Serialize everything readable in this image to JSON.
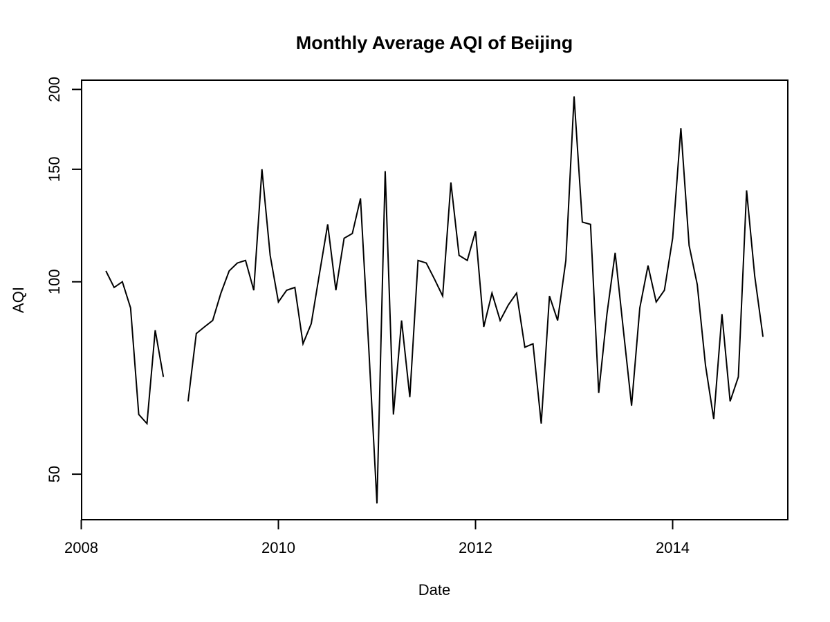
{
  "chart_data": {
    "type": "line",
    "title": "Monthly Average AQI of Beijing",
    "xlabel": "Date",
    "ylabel": "AQI",
    "y_scale": "log",
    "x_ticks": [
      2008,
      2010,
      2012,
      2014
    ],
    "y_ticks": [
      50,
      100,
      150,
      200
    ],
    "xlim": [
      2007.97,
      2015.19
    ],
    "ylim": [
      42.4,
      206.7
    ],
    "grid": false,
    "legend": "none",
    "line_color": "#000000",
    "background_color": "#ffffff",
    "points": [
      {
        "date": "2008-04",
        "aqi": 104
      },
      {
        "date": "2008-05",
        "aqi": 98
      },
      {
        "date": "2008-06",
        "aqi": 100
      },
      {
        "date": "2008-07",
        "aqi": 91
      },
      {
        "date": "2008-08",
        "aqi": 62
      },
      {
        "date": "2008-09",
        "aqi": 60
      },
      {
        "date": "2008-10",
        "aqi": 84
      },
      {
        "date": "2008-11",
        "aqi": 71
      },
      {
        "date": "2008-12",
        "aqi": null
      },
      {
        "date": "2009-01",
        "aqi": null
      },
      {
        "date": "2009-02",
        "aqi": 65
      },
      {
        "date": "2009-03",
        "aqi": 83
      },
      {
        "date": "2009-04",
        "aqi": 85
      },
      {
        "date": "2009-05",
        "aqi": 87
      },
      {
        "date": "2009-06",
        "aqi": 96
      },
      {
        "date": "2009-07",
        "aqi": 104
      },
      {
        "date": "2009-08",
        "aqi": 107
      },
      {
        "date": "2009-09",
        "aqi": 108
      },
      {
        "date": "2009-10",
        "aqi": 97
      },
      {
        "date": "2009-11",
        "aqi": 150
      },
      {
        "date": "2009-12",
        "aqi": 110
      },
      {
        "date": "2010-01",
        "aqi": 93
      },
      {
        "date": "2010-02",
        "aqi": 97
      },
      {
        "date": "2010-03",
        "aqi": 98
      },
      {
        "date": "2010-04",
        "aqi": 80
      },
      {
        "date": "2010-05",
        "aqi": 86
      },
      {
        "date": "2010-06",
        "aqi": 103
      },
      {
        "date": "2010-07",
        "aqi": 123
      },
      {
        "date": "2010-08",
        "aqi": 97
      },
      {
        "date": "2010-09",
        "aqi": 117
      },
      {
        "date": "2010-10",
        "aqi": 119
      },
      {
        "date": "2010-11",
        "aqi": 135
      },
      {
        "date": "2010-12",
        "aqi": 79
      },
      {
        "date": "2011-01",
        "aqi": 45
      },
      {
        "date": "2011-02",
        "aqi": 149
      },
      {
        "date": "2011-03",
        "aqi": 62
      },
      {
        "date": "2011-04",
        "aqi": 87
      },
      {
        "date": "2011-05",
        "aqi": 66
      },
      {
        "date": "2011-06",
        "aqi": 108
      },
      {
        "date": "2011-07",
        "aqi": 107
      },
      {
        "date": "2011-08",
        "aqi": 101
      },
      {
        "date": "2011-09",
        "aqi": 95
      },
      {
        "date": "2011-10",
        "aqi": 143
      },
      {
        "date": "2011-11",
        "aqi": 110
      },
      {
        "date": "2011-12",
        "aqi": 108
      },
      {
        "date": "2012-01",
        "aqi": 120
      },
      {
        "date": "2012-02",
        "aqi": 85
      },
      {
        "date": "2012-03",
        "aqi": 96
      },
      {
        "date": "2012-04",
        "aqi": 87
      },
      {
        "date": "2012-05",
        "aqi": 92
      },
      {
        "date": "2012-06",
        "aqi": 96
      },
      {
        "date": "2012-07",
        "aqi": 79
      },
      {
        "date": "2012-08",
        "aqi": 80
      },
      {
        "date": "2012-09",
        "aqi": 60
      },
      {
        "date": "2012-10",
        "aqi": 95
      },
      {
        "date": "2012-11",
        "aqi": 87
      },
      {
        "date": "2012-12",
        "aqi": 108
      },
      {
        "date": "2013-01",
        "aqi": 195
      },
      {
        "date": "2013-02",
        "aqi": 124
      },
      {
        "date": "2013-03",
        "aqi": 123
      },
      {
        "date": "2013-04",
        "aqi": 67
      },
      {
        "date": "2013-05",
        "aqi": 89
      },
      {
        "date": "2013-06",
        "aqi": 111
      },
      {
        "date": "2013-07",
        "aqi": 84
      },
      {
        "date": "2013-08",
        "aqi": 64
      },
      {
        "date": "2013-09",
        "aqi": 91
      },
      {
        "date": "2013-10",
        "aqi": 106
      },
      {
        "date": "2013-11",
        "aqi": 93
      },
      {
        "date": "2013-12",
        "aqi": 97
      },
      {
        "date": "2014-01",
        "aqi": 117
      },
      {
        "date": "2014-02",
        "aqi": 174
      },
      {
        "date": "2014-03",
        "aqi": 114
      },
      {
        "date": "2014-04",
        "aqi": 99
      },
      {
        "date": "2014-05",
        "aqi": 74
      },
      {
        "date": "2014-06",
        "aqi": 61
      },
      {
        "date": "2014-07",
        "aqi": 89
      },
      {
        "date": "2014-08",
        "aqi": 65
      },
      {
        "date": "2014-09",
        "aqi": 71
      },
      {
        "date": "2014-10",
        "aqi": 139
      },
      {
        "date": "2014-11",
        "aqi": 102
      },
      {
        "date": "2014-12",
        "aqi": 82
      }
    ]
  }
}
